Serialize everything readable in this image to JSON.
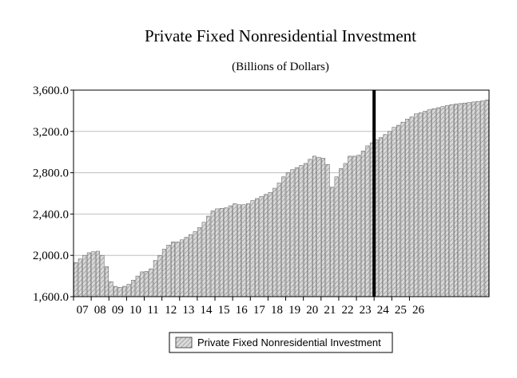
{
  "chart_data": {
    "type": "bar",
    "title": "Private Fixed Nonresidential Investment",
    "subtitle": "(Billions of Dollars)",
    "xlabel": "",
    "ylabel": "",
    "ylim": [
      1600,
      3600
    ],
    "yticks": [
      1600,
      2000,
      2400,
      2800,
      3200,
      3600
    ],
    "ytick_labels": [
      "1,600.0",
      "2,000.0",
      "2,400.0",
      "2,800.0",
      "3,200.0",
      "3,600.0"
    ],
    "year_labels": [
      "07",
      "08",
      "09",
      "10",
      "11",
      "12",
      "13",
      "14",
      "15",
      "16",
      "17",
      "18",
      "19",
      "20",
      "21",
      "22",
      "23",
      "24",
      "25",
      "26"
    ],
    "start_quarter": "2007Q1",
    "forecast_start": "2024Q1",
    "grid": true,
    "legend": "bottom",
    "series": [
      {
        "name": "Private Fixed Nonresidential Investment",
        "values": [
          1930,
          1965,
          2000,
          2025,
          2035,
          2040,
          2000,
          1890,
          1745,
          1700,
          1690,
          1700,
          1720,
          1760,
          1800,
          1840,
          1845,
          1870,
          1950,
          2000,
          2060,
          2100,
          2130,
          2130,
          2150,
          2175,
          2200,
          2230,
          2270,
          2320,
          2380,
          2430,
          2450,
          2455,
          2460,
          2480,
          2500,
          2490,
          2490,
          2500,
          2530,
          2550,
          2570,
          2590,
          2610,
          2650,
          2700,
          2760,
          2800,
          2830,
          2850,
          2870,
          2890,
          2930,
          2960,
          2950,
          2940,
          2880,
          2660,
          2760,
          2840,
          2890,
          2960,
          2960,
          2970,
          3010,
          3060,
          3090,
          3120,
          3140,
          3170,
          3200,
          3240,
          3260,
          3290,
          3320,
          3340,
          3370,
          3380,
          3395,
          3410,
          3420,
          3430,
          3440,
          3450,
          3460,
          3465,
          3470,
          3475,
          3480,
          3485,
          3490,
          3495,
          3505
        ]
      }
    ]
  },
  "legend": {
    "label": "Private Fixed Nonresidential Investment"
  },
  "colors": {
    "bar_fill": "#d4d4d4",
    "bar_stroke": "#555555",
    "hatch": "#777777",
    "forecast_line": "#000000",
    "grid": "#bfbfbf"
  }
}
